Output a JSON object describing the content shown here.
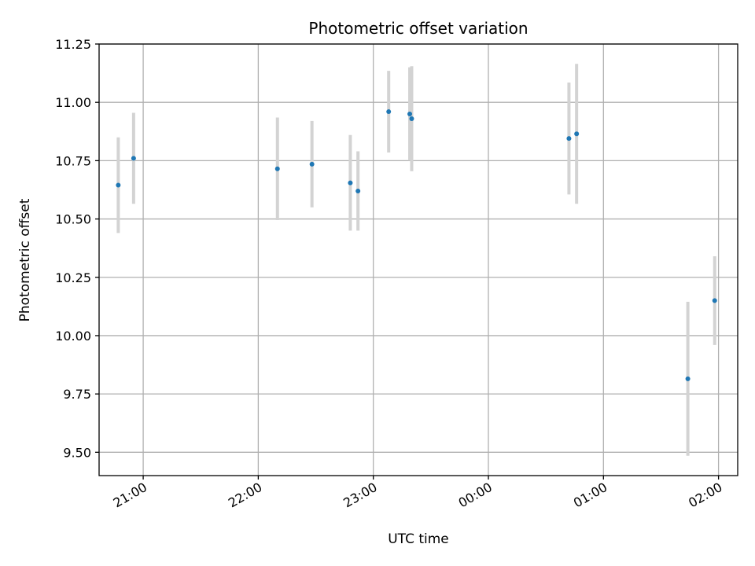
{
  "chart_data": {
    "type": "scatter",
    "title": "Photometric offset variation",
    "xlabel": "UTC time",
    "ylabel": "Photometric offset",
    "x_unit": "UTC time (HH:MM)",
    "xlim": [
      "20:37",
      "02:10"
    ],
    "ylim": [
      9.4,
      11.25
    ],
    "x_ticks": [
      "21:00",
      "22:00",
      "23:00",
      "00:00",
      "01:00",
      "02:00"
    ],
    "y_ticks": [
      "9.50",
      "9.75",
      "10.00",
      "10.25",
      "10.50",
      "10.75",
      "11.00",
      "11.25"
    ],
    "grid": true,
    "legend": false,
    "colors": {
      "points": "#1f77b4",
      "error_bars": "#d3d3d3",
      "grid": "#b0b0b0"
    },
    "points": [
      {
        "x": "20:47",
        "y": 10.645,
        "yerr": 0.205
      },
      {
        "x": "20:55",
        "y": 10.76,
        "yerr": 0.195
      },
      {
        "x": "22:10",
        "y": 10.715,
        "yerr": 0.22
      },
      {
        "x": "22:28",
        "y": 10.735,
        "yerr": 0.185
      },
      {
        "x": "22:48",
        "y": 10.655,
        "yerr": 0.205
      },
      {
        "x": "22:52",
        "y": 10.62,
        "yerr": 0.17
      },
      {
        "x": "23:08",
        "y": 10.96,
        "yerr": 0.175
      },
      {
        "x": "23:19",
        "y": 10.95,
        "yerr": 0.2
      },
      {
        "x": "23:20",
        "y": 10.93,
        "yerr": 0.225
      },
      {
        "x": "00:42",
        "y": 10.845,
        "yerr": 0.24
      },
      {
        "x": "00:46",
        "y": 10.865,
        "yerr": 0.3
      },
      {
        "x": "01:44",
        "y": 9.815,
        "yerr": 0.33
      },
      {
        "x": "01:58",
        "y": 10.15,
        "yerr": 0.19
      }
    ]
  }
}
